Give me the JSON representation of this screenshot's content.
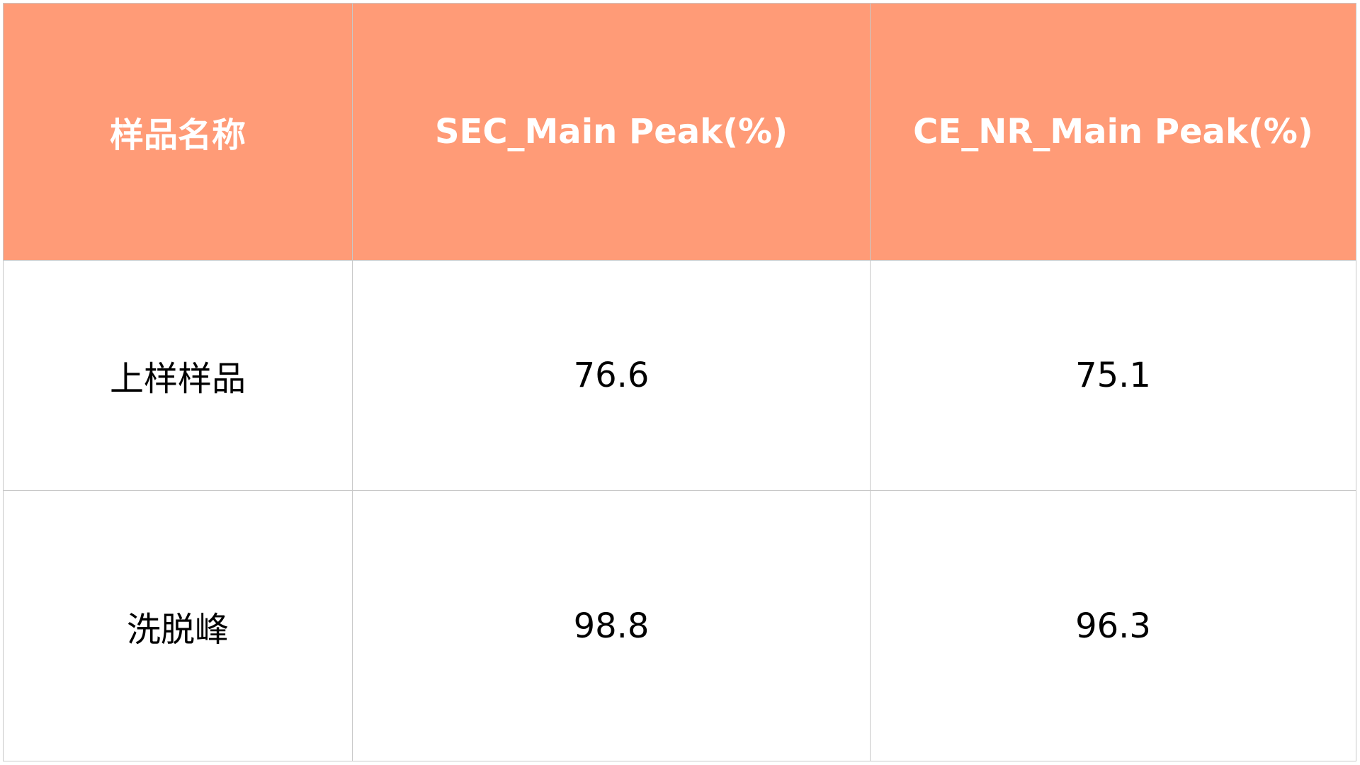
{
  "table": {
    "header": [
      "样品名称",
      "SEC_Main Peak(%)",
      "CE_NR_Main Peak(%)"
    ],
    "rows": [
      [
        "上样样品",
        76.6,
        75.1
      ],
      [
        "洗脱峰",
        98.8,
        96.3
      ]
    ]
  }
}
